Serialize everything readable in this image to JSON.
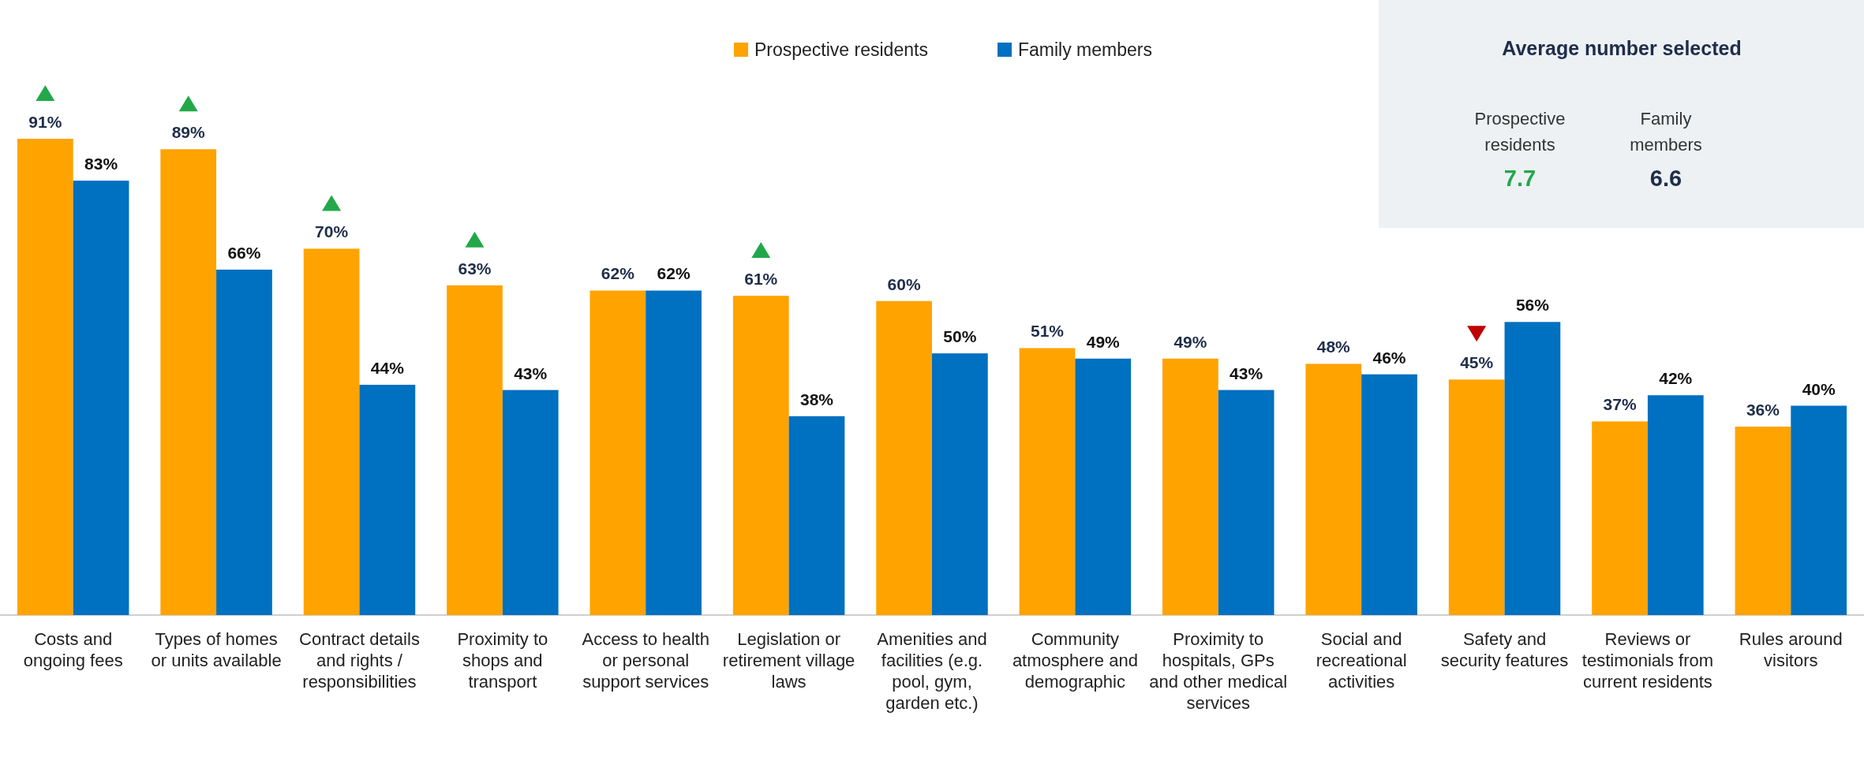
{
  "chart_data": [
    {
      "type": "bar",
      "categories": [
        "Costs and ongoing fees",
        "Types of homes or units available",
        "Contract details and rights / responsibilities",
        "Proximity to shops and transport",
        "Access to health or personal support services",
        "Legislation or retirement village laws",
        "Amenities and facilities (e.g. pool, gym, garden etc.)",
        "Community atmosphere and demographic",
        "Proximity to hospitals, GPs and other medical services",
        "Social and recreational activities",
        "Safety and security features",
        "Reviews or testimonials from current residents",
        "Rules around visitors"
      ],
      "series": [
        {
          "name": "Prospective residents",
          "color": "#ffa300",
          "values": [
            91,
            89,
            70,
            63,
            62,
            61,
            60,
            51,
            49,
            48,
            45,
            37,
            36
          ],
          "value_labels": [
            "91%",
            "89%",
            "70%",
            "63%",
            "62%",
            "61%",
            "60%",
            "51%",
            "49%",
            "48%",
            "45%",
            "37%",
            "36%"
          ]
        },
        {
          "name": "Family members",
          "color": "#0070c0",
          "values": [
            83,
            66,
            44,
            43,
            62,
            38,
            50,
            49,
            43,
            46,
            56,
            42,
            40
          ],
          "value_labels": [
            "83%",
            "66%",
            "44%",
            "43%",
            "62%",
            "38%",
            "50%",
            "49%",
            "43%",
            "46%",
            "56%",
            "42%",
            "40%"
          ]
        }
      ],
      "legend": "top"
    },
    {
      "type": "other",
      "title": "Average number selected",
      "categories": [
        "Prospective residents",
        "Family members"
      ],
      "values": [
        7.7,
        6.6
      ],
      "data_labels": true
    }
  ]
}
